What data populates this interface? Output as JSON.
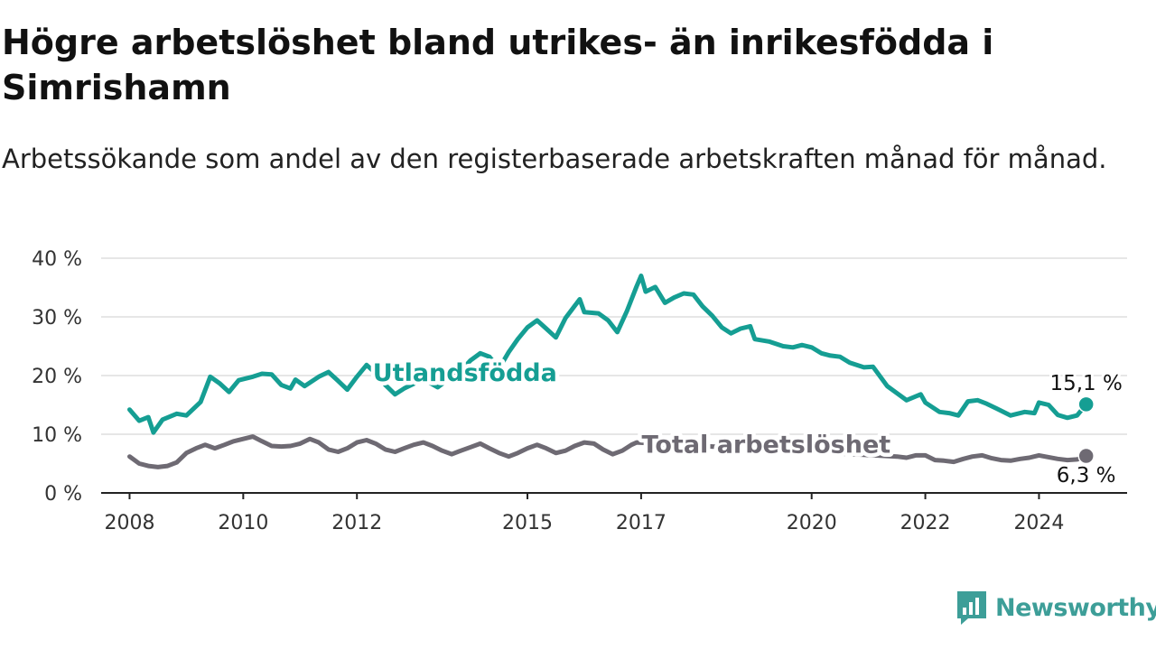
{
  "header": {
    "title": "Högre arbetslöshet bland utrikes- än inrikesfödda i Simrishamn",
    "subtitle": "Arbetssökande som andel av den registerbaserade arbetskraften månad för månad."
  },
  "brand": {
    "name": "Newsworthy",
    "color": "#3d9e98"
  },
  "chart_data": {
    "type": "line",
    "title": "Högre arbetslöshet bland utrikes- än inrikesfödda i Simrishamn",
    "subtitle": "Arbetssökande som andel av den registerbaserade arbetskraften månad för månad.",
    "ylim": [
      0,
      40
    ],
    "y_ticks": [
      0,
      10,
      20,
      30,
      40
    ],
    "y_tick_labels": [
      "0 %",
      "10 %",
      "20 %",
      "30 %",
      "40 %"
    ],
    "x_ticks": [
      2008,
      2010,
      2012,
      2015,
      2017,
      2020,
      2022,
      2024
    ],
    "x_tick_labels": [
      "2008",
      "2010",
      "2012",
      "2015",
      "2017",
      "2020",
      "2022",
      "2024"
    ],
    "grid": "horizontal",
    "series": [
      {
        "name": "Utlandsfödda",
        "color": "#159e93",
        "end_label": "15,1 %",
        "points": [
          [
            2008.0,
            14.2
          ],
          [
            2008.17,
            12.3
          ],
          [
            2008.33,
            12.9
          ],
          [
            2008.42,
            10.3
          ],
          [
            2008.58,
            12.5
          ],
          [
            2008.83,
            13.5
          ],
          [
            2009.0,
            13.2
          ],
          [
            2009.25,
            15.5
          ],
          [
            2009.42,
            19.8
          ],
          [
            2009.58,
            18.7
          ],
          [
            2009.75,
            17.2
          ],
          [
            2009.92,
            19.2
          ],
          [
            2010.17,
            19.8
          ],
          [
            2010.33,
            20.3
          ],
          [
            2010.5,
            20.2
          ],
          [
            2010.67,
            18.4
          ],
          [
            2010.83,
            17.8
          ],
          [
            2010.92,
            19.3
          ],
          [
            2011.08,
            18.2
          ],
          [
            2011.33,
            19.8
          ],
          [
            2011.5,
            20.6
          ],
          [
            2011.67,
            19.1
          ],
          [
            2011.83,
            17.6
          ],
          [
            2012.0,
            19.8
          ],
          [
            2012.17,
            21.8
          ],
          [
            2012.33,
            20.4
          ],
          [
            2012.5,
            18.4
          ],
          [
            2012.67,
            16.8
          ],
          [
            2012.83,
            17.8
          ],
          [
            2013.0,
            18.6
          ],
          [
            2013.17,
            19.4
          ],
          [
            2013.42,
            18.0
          ],
          [
            2013.67,
            19.8
          ],
          [
            2013.83,
            20.8
          ],
          [
            2014.0,
            22.6
          ],
          [
            2014.17,
            23.8
          ],
          [
            2014.33,
            23.2
          ],
          [
            2014.5,
            21.2
          ],
          [
            2014.67,
            24.0
          ],
          [
            2014.83,
            26.2
          ],
          [
            2015.0,
            28.2
          ],
          [
            2015.17,
            29.4
          ],
          [
            2015.33,
            28.0
          ],
          [
            2015.5,
            26.5
          ],
          [
            2015.67,
            29.8
          ],
          [
            2015.92,
            33.0
          ],
          [
            2016.0,
            30.8
          ],
          [
            2016.25,
            30.6
          ],
          [
            2016.42,
            29.4
          ],
          [
            2016.58,
            27.4
          ],
          [
            2016.75,
            31.0
          ],
          [
            2016.92,
            35.2
          ],
          [
            2017.0,
            37.0
          ],
          [
            2017.08,
            34.3
          ],
          [
            2017.25,
            35.1
          ],
          [
            2017.42,
            32.4
          ],
          [
            2017.58,
            33.3
          ],
          [
            2017.75,
            34.0
          ],
          [
            2017.92,
            33.8
          ],
          [
            2018.08,
            31.8
          ],
          [
            2018.25,
            30.2
          ],
          [
            2018.42,
            28.2
          ],
          [
            2018.58,
            27.2
          ],
          [
            2018.75,
            28.0
          ],
          [
            2018.92,
            28.4
          ],
          [
            2019.0,
            26.2
          ],
          [
            2019.25,
            25.8
          ],
          [
            2019.5,
            25.0
          ],
          [
            2019.67,
            24.8
          ],
          [
            2019.83,
            25.2
          ],
          [
            2020.0,
            24.8
          ],
          [
            2020.17,
            23.8
          ],
          [
            2020.33,
            23.4
          ],
          [
            2020.5,
            23.2
          ],
          [
            2020.67,
            22.2
          ],
          [
            2020.92,
            21.4
          ],
          [
            2021.08,
            21.5
          ],
          [
            2021.33,
            18.2
          ],
          [
            2021.5,
            17.0
          ],
          [
            2021.67,
            15.8
          ],
          [
            2021.92,
            16.8
          ],
          [
            2022.0,
            15.4
          ],
          [
            2022.25,
            13.8
          ],
          [
            2022.42,
            13.6
          ],
          [
            2022.58,
            13.2
          ],
          [
            2022.75,
            15.6
          ],
          [
            2022.92,
            15.8
          ],
          [
            2023.08,
            15.2
          ],
          [
            2023.25,
            14.4
          ],
          [
            2023.5,
            13.2
          ],
          [
            2023.75,
            13.8
          ],
          [
            2023.92,
            13.6
          ],
          [
            2024.0,
            15.4
          ],
          [
            2024.17,
            15.0
          ],
          [
            2024.33,
            13.3
          ],
          [
            2024.5,
            12.8
          ],
          [
            2024.67,
            13.2
          ],
          [
            2024.83,
            15.1
          ]
        ]
      },
      {
        "name": "Total arbetslöshet",
        "color": "#6e6a73",
        "end_label": "6,3 %",
        "points": [
          [
            2008.0,
            6.2
          ],
          [
            2008.17,
            5.0
          ],
          [
            2008.33,
            4.6
          ],
          [
            2008.5,
            4.4
          ],
          [
            2008.67,
            4.6
          ],
          [
            2008.83,
            5.2
          ],
          [
            2009.0,
            6.8
          ],
          [
            2009.17,
            7.6
          ],
          [
            2009.33,
            8.2
          ],
          [
            2009.5,
            7.6
          ],
          [
            2009.67,
            8.2
          ],
          [
            2009.83,
            8.8
          ],
          [
            2010.0,
            9.2
          ],
          [
            2010.17,
            9.6
          ],
          [
            2010.33,
            8.8
          ],
          [
            2010.5,
            8.0
          ],
          [
            2010.67,
            7.9
          ],
          [
            2010.83,
            8.0
          ],
          [
            2011.0,
            8.4
          ],
          [
            2011.17,
            9.2
          ],
          [
            2011.33,
            8.6
          ],
          [
            2011.5,
            7.4
          ],
          [
            2011.67,
            7.0
          ],
          [
            2011.83,
            7.6
          ],
          [
            2012.0,
            8.6
          ],
          [
            2012.17,
            9.0
          ],
          [
            2012.33,
            8.4
          ],
          [
            2012.5,
            7.4
          ],
          [
            2012.67,
            7.0
          ],
          [
            2012.83,
            7.6
          ],
          [
            2013.0,
            8.2
          ],
          [
            2013.17,
            8.6
          ],
          [
            2013.33,
            8.0
          ],
          [
            2013.5,
            7.2
          ],
          [
            2013.67,
            6.6
          ],
          [
            2013.83,
            7.2
          ],
          [
            2014.0,
            7.8
          ],
          [
            2014.17,
            8.4
          ],
          [
            2014.33,
            7.6
          ],
          [
            2014.5,
            6.8
          ],
          [
            2014.67,
            6.2
          ],
          [
            2014.83,
            6.8
          ],
          [
            2015.0,
            7.6
          ],
          [
            2015.17,
            8.2
          ],
          [
            2015.33,
            7.6
          ],
          [
            2015.5,
            6.8
          ],
          [
            2015.67,
            7.2
          ],
          [
            2015.83,
            8.0
          ],
          [
            2016.0,
            8.6
          ],
          [
            2016.17,
            8.4
          ],
          [
            2016.33,
            7.4
          ],
          [
            2016.5,
            6.6
          ],
          [
            2016.67,
            7.2
          ],
          [
            2016.83,
            8.2
          ],
          [
            2016.92,
            8.6
          ],
          [
            2021.5,
            6.2
          ],
          [
            2021.67,
            6.0
          ],
          [
            2021.83,
            6.4
          ],
          [
            2022.0,
            6.4
          ],
          [
            2022.17,
            5.6
          ],
          [
            2022.33,
            5.5
          ],
          [
            2022.5,
            5.3
          ],
          [
            2022.67,
            5.8
          ],
          [
            2022.83,
            6.2
          ],
          [
            2023.0,
            6.4
          ],
          [
            2023.17,
            5.9
          ],
          [
            2023.33,
            5.6
          ],
          [
            2023.5,
            5.5
          ],
          [
            2023.67,
            5.8
          ],
          [
            2023.83,
            6.0
          ],
          [
            2024.0,
            6.4
          ],
          [
            2024.17,
            6.1
          ],
          [
            2024.33,
            5.8
          ],
          [
            2024.5,
            5.6
          ],
          [
            2024.67,
            5.7
          ],
          [
            2024.83,
            6.3
          ]
        ]
      }
    ],
    "annotations": [
      {
        "text": "Utlandsfödda",
        "series": 0,
        "x": 2013.9,
        "y": 20.5
      },
      {
        "text": "Total arbetslöshet",
        "series": 1,
        "x": 2019.2,
        "y": 8.2
      }
    ]
  }
}
